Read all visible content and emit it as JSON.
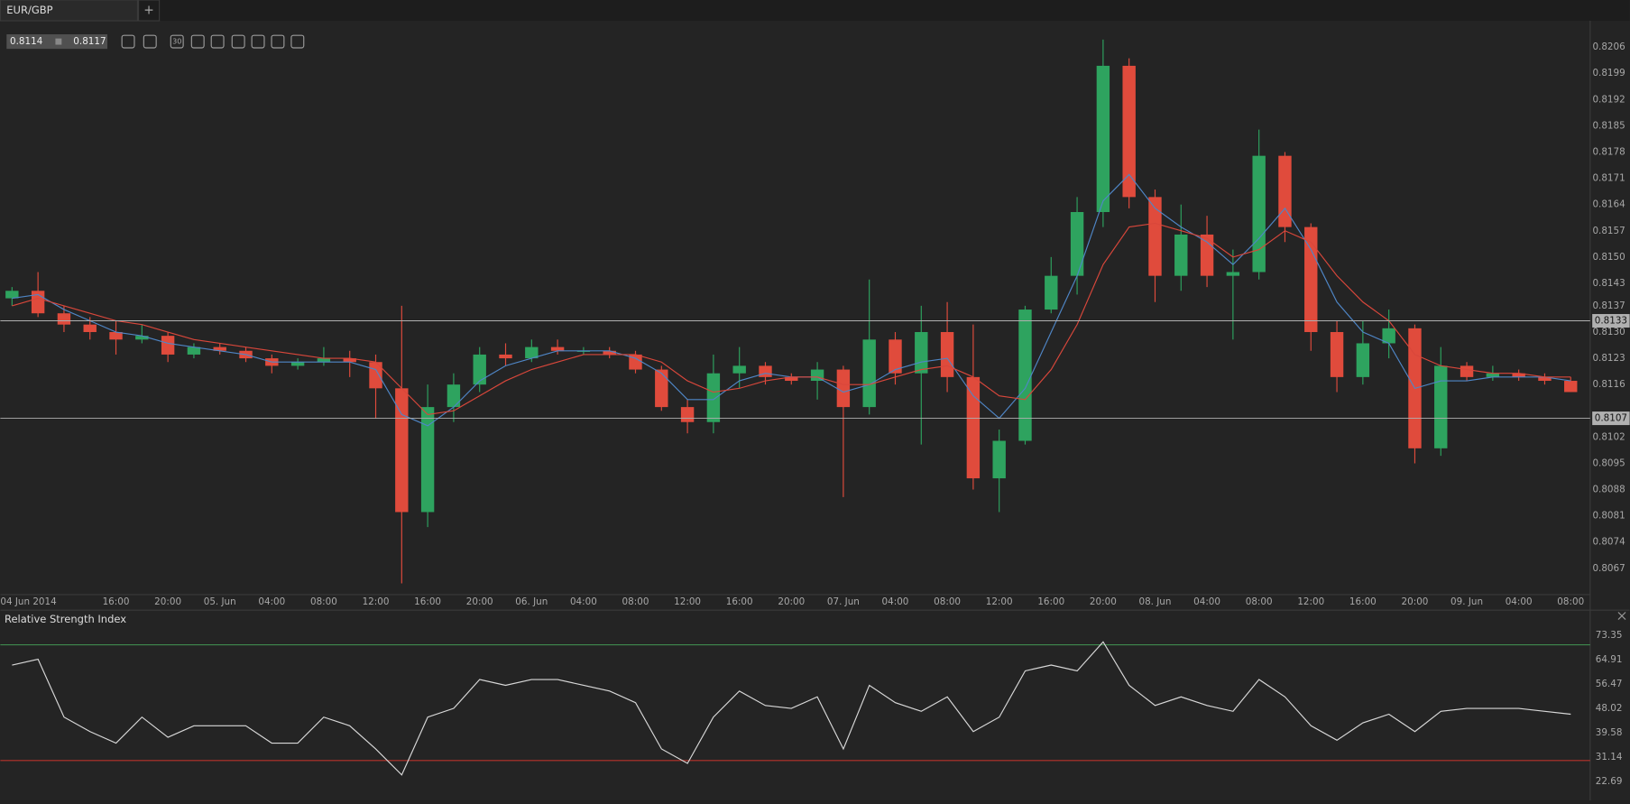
{
  "tab": {
    "title": "EUR/GBP",
    "add": "+"
  },
  "quote": {
    "bid": "0.8114",
    "ask": "0.8117"
  },
  "toolbar": {
    "timeframe": "30"
  },
  "chart_data": [
    {
      "type": "candlestick",
      "x_start_label": "04 Jun 2014",
      "x": [
        8,
        10,
        12,
        14,
        16,
        18,
        20,
        22,
        24,
        26,
        28,
        30,
        32,
        34,
        36,
        38,
        40,
        42,
        44,
        46,
        48,
        50,
        52,
        54,
        56,
        58,
        60,
        62,
        64,
        66,
        68,
        70,
        72,
        74,
        76,
        78,
        80,
        82,
        84,
        86,
        88,
        90,
        92,
        94,
        96,
        98,
        100,
        102,
        104,
        106,
        108,
        110,
        112,
        114,
        116,
        118,
        120,
        122,
        124,
        126,
        128
      ],
      "open": [
        0.8139,
        0.8141,
        0.8135,
        0.8132,
        0.813,
        0.8128,
        0.8129,
        0.8124,
        0.8126,
        0.8125,
        0.8123,
        0.8121,
        0.8122,
        0.8123,
        0.8122,
        0.8115,
        0.8082,
        0.811,
        0.8116,
        0.8124,
        0.8123,
        0.8126,
        0.8125,
        0.8125,
        0.8124,
        0.812,
        0.811,
        0.8106,
        0.8119,
        0.8121,
        0.8118,
        0.8117,
        0.812,
        0.811,
        0.8128,
        0.8119,
        0.813,
        0.8118,
        0.8091,
        0.8101,
        0.8136,
        0.8145,
        0.8162,
        0.8201,
        0.8166,
        0.8145,
        0.8156,
        0.8145,
        0.8146,
        0.8177,
        0.8158,
        0.813,
        0.8118,
        0.8127,
        0.8131,
        0.8099,
        0.8121,
        0.8118,
        0.8119,
        0.8118,
        0.8117
      ],
      "high": [
        0.8142,
        0.8146,
        0.8137,
        0.8134,
        0.8133,
        0.8132,
        0.813,
        0.8127,
        0.8127,
        0.8126,
        0.8124,
        0.8123,
        0.8126,
        0.8125,
        0.8124,
        0.8137,
        0.8116,
        0.8119,
        0.8126,
        0.8127,
        0.8128,
        0.8128,
        0.8126,
        0.8126,
        0.8125,
        0.8121,
        0.8112,
        0.8124,
        0.8126,
        0.8122,
        0.8119,
        0.8122,
        0.8121,
        0.8144,
        0.813,
        0.8137,
        0.8138,
        0.8132,
        0.8104,
        0.8137,
        0.815,
        0.8166,
        0.8208,
        0.8203,
        0.8168,
        0.8164,
        0.8161,
        0.8152,
        0.8184,
        0.8178,
        0.8159,
        0.8133,
        0.8133,
        0.8136,
        0.8132,
        0.8126,
        0.8122,
        0.8121,
        0.812,
        0.8119,
        0.8118
      ],
      "low": [
        0.8137,
        0.8134,
        0.813,
        0.8128,
        0.8124,
        0.8127,
        0.8122,
        0.8123,
        0.8124,
        0.8122,
        0.8119,
        0.812,
        0.8121,
        0.8118,
        0.8107,
        0.8063,
        0.8078,
        0.8106,
        0.8114,
        0.8121,
        0.8122,
        0.8124,
        0.8124,
        0.8123,
        0.8119,
        0.8109,
        0.8103,
        0.8103,
        0.8115,
        0.8116,
        0.8116,
        0.8112,
        0.8086,
        0.8108,
        0.8116,
        0.81,
        0.8114,
        0.8088,
        0.8082,
        0.81,
        0.8135,
        0.814,
        0.8158,
        0.8163,
        0.8138,
        0.8141,
        0.8142,
        0.8128,
        0.8144,
        0.8154,
        0.8125,
        0.8114,
        0.8116,
        0.8123,
        0.8095,
        0.8097,
        0.8117,
        0.8117,
        0.8117,
        0.8116,
        0.8114
      ],
      "close": [
        0.8141,
        0.8135,
        0.8132,
        0.813,
        0.8128,
        0.8129,
        0.8124,
        0.8126,
        0.8125,
        0.8123,
        0.8121,
        0.8122,
        0.8123,
        0.8122,
        0.8115,
        0.8082,
        0.811,
        0.8116,
        0.8124,
        0.8123,
        0.8126,
        0.8125,
        0.8125,
        0.8124,
        0.812,
        0.811,
        0.8106,
        0.8119,
        0.8121,
        0.8118,
        0.8117,
        0.812,
        0.811,
        0.8128,
        0.8119,
        0.813,
        0.8118,
        0.8091,
        0.8101,
        0.8136,
        0.8145,
        0.8162,
        0.8201,
        0.8166,
        0.8145,
        0.8156,
        0.8145,
        0.8146,
        0.8177,
        0.8158,
        0.813,
        0.8118,
        0.8127,
        0.8131,
        0.8099,
        0.8121,
        0.8118,
        0.8119,
        0.8118,
        0.8117,
        0.8114
      ],
      "up_color": "#2ea35f",
      "down_color": "#e04b3c",
      "lines": [
        {
          "color": "#4f86c6",
          "values": [
            0.8139,
            0.814,
            0.8136,
            0.8133,
            0.813,
            0.8129,
            0.8127,
            0.8126,
            0.8125,
            0.8124,
            0.8122,
            0.8122,
            0.8122,
            0.8122,
            0.812,
            0.8108,
            0.8105,
            0.811,
            0.8117,
            0.8121,
            0.8123,
            0.8125,
            0.8125,
            0.8125,
            0.8123,
            0.8119,
            0.8112,
            0.8112,
            0.8117,
            0.8119,
            0.8118,
            0.8118,
            0.8114,
            0.8116,
            0.812,
            0.8122,
            0.8123,
            0.8113,
            0.8107,
            0.8115,
            0.813,
            0.8145,
            0.8165,
            0.8172,
            0.8163,
            0.8158,
            0.8154,
            0.8148,
            0.8155,
            0.8163,
            0.8152,
            0.8138,
            0.813,
            0.8127,
            0.8115,
            0.8117,
            0.8117,
            0.8118,
            0.8118,
            0.8118,
            0.8117
          ]
        },
        {
          "color": "#d9473b",
          "values": [
            0.8137,
            0.8139,
            0.8137,
            0.8135,
            0.8133,
            0.8132,
            0.813,
            0.8128,
            0.8127,
            0.8126,
            0.8125,
            0.8124,
            0.8123,
            0.8123,
            0.8122,
            0.8115,
            0.8108,
            0.8109,
            0.8113,
            0.8117,
            0.812,
            0.8122,
            0.8124,
            0.8124,
            0.8124,
            0.8122,
            0.8117,
            0.8114,
            0.8115,
            0.8117,
            0.8118,
            0.8118,
            0.8116,
            0.8116,
            0.8118,
            0.812,
            0.8121,
            0.8118,
            0.8113,
            0.8112,
            0.812,
            0.8132,
            0.8148,
            0.8158,
            0.8159,
            0.8157,
            0.8155,
            0.815,
            0.8152,
            0.8157,
            0.8154,
            0.8145,
            0.8138,
            0.8133,
            0.8124,
            0.8121,
            0.812,
            0.8119,
            0.8119,
            0.8118,
            0.8118
          ]
        }
      ],
      "xlim": [
        7.1,
        129.5
      ],
      "xticks": [
        {
          "value": 16,
          "label": "16:00"
        },
        {
          "value": 20,
          "label": "20:00"
        },
        {
          "value": 24,
          "label": "05. Jun"
        },
        {
          "value": 28,
          "label": "04:00"
        },
        {
          "value": 32,
          "label": "08:00"
        },
        {
          "value": 36,
          "label": "12:00"
        },
        {
          "value": 40,
          "label": "16:00"
        },
        {
          "value": 44,
          "label": "20:00"
        },
        {
          "value": 48,
          "label": "06. Jun"
        },
        {
          "value": 52,
          "label": "04:00"
        },
        {
          "value": 56,
          "label": "08:00"
        },
        {
          "value": 60,
          "label": "12:00"
        },
        {
          "value": 64,
          "label": "16:00"
        },
        {
          "value": 68,
          "label": "20:00"
        },
        {
          "value": 72,
          "label": "07. Jun"
        },
        {
          "value": 76,
          "label": "04:00"
        },
        {
          "value": 80,
          "label": "08:00"
        },
        {
          "value": 84,
          "label": "12:00"
        },
        {
          "value": 88,
          "label": "16:00"
        },
        {
          "value": 92,
          "label": "20:00"
        },
        {
          "value": 96,
          "label": "08. Jun"
        },
        {
          "value": 100,
          "label": "04:00"
        },
        {
          "value": 104,
          "label": "08:00"
        },
        {
          "value": 108,
          "label": "12:00"
        },
        {
          "value": 112,
          "label": "16:00"
        },
        {
          "value": 116,
          "label": "20:00"
        },
        {
          "value": 120,
          "label": "09. Jun"
        },
        {
          "value": 124,
          "label": "04:00"
        },
        {
          "value": 128,
          "label": "08:00"
        }
      ],
      "ylim": [
        0.806,
        0.8213
      ],
      "yticks": [
        {
          "value": 0.8206,
          "label": "0.8206"
        },
        {
          "value": 0.8199,
          "label": "0.8199"
        },
        {
          "value": 0.8192,
          "label": "0.8192"
        },
        {
          "value": 0.8185,
          "label": "0.8185"
        },
        {
          "value": 0.8178,
          "label": "0.8178"
        },
        {
          "value": 0.8171,
          "label": "0.8171"
        },
        {
          "value": 0.8164,
          "label": "0.8164"
        },
        {
          "value": 0.8157,
          "label": "0.8157"
        },
        {
          "value": 0.815,
          "label": "0.8150"
        },
        {
          "value": 0.8143,
          "label": "0.8143"
        },
        {
          "value": 0.8137,
          "label": "0.8137"
        },
        {
          "value": 0.813,
          "label": "0.8130"
        },
        {
          "value": 0.8123,
          "label": "0.8123"
        },
        {
          "value": 0.8116,
          "label": "0.8116"
        },
        {
          "value": 0.8102,
          "label": "0.8102"
        },
        {
          "value": 0.8095,
          "label": "0.8095"
        },
        {
          "value": 0.8088,
          "label": "0.8088"
        },
        {
          "value": 0.8081,
          "label": "0.8081"
        },
        {
          "value": 0.8074,
          "label": "0.8074"
        },
        {
          "value": 0.8067,
          "label": "0.8067"
        }
      ],
      "levels": [
        {
          "value": 0.8133,
          "label": "0.8133"
        },
        {
          "value": 0.8107,
          "label": "0.8107"
        }
      ],
      "level_color": "#b0b0b0"
    },
    {
      "type": "line",
      "title": "Relative Strength Index",
      "color": "#d8d8d8",
      "x": [
        8,
        10,
        12,
        14,
        16,
        18,
        20,
        22,
        24,
        26,
        28,
        30,
        32,
        34,
        36,
        38,
        40,
        42,
        44,
        46,
        48,
        50,
        52,
        54,
        56,
        58,
        60,
        62,
        64,
        66,
        68,
        70,
        72,
        74,
        76,
        78,
        80,
        82,
        84,
        86,
        88,
        90,
        92,
        94,
        96,
        98,
        100,
        102,
        104,
        106,
        108,
        110,
        112,
        114,
        116,
        118,
        120,
        122,
        124,
        126,
        128
      ],
      "values": [
        63,
        65,
        45,
        40,
        36,
        45,
        38,
        42,
        42,
        42,
        36,
        36,
        45,
        42,
        34,
        25,
        45,
        48,
        58,
        56,
        58,
        58,
        56,
        54,
        50,
        34,
        29,
        45,
        54,
        49,
        48,
        52,
        34,
        56,
        50,
        47,
        52,
        40,
        45,
        61,
        63,
        61,
        71,
        56,
        49,
        52,
        49,
        47,
        58,
        52,
        42,
        37,
        43,
        46,
        40,
        47,
        48,
        48,
        48,
        47,
        46
      ],
      "xlim": [
        7.1,
        129.5
      ],
      "ylim": [
        16.2,
        77.3
      ],
      "yticks": [
        73.35,
        64.91,
        56.47,
        48.02,
        39.58,
        31.14,
        22.69
      ],
      "levels": [
        {
          "value": 70,
          "color": "#3f8a4e"
        },
        {
          "value": 30,
          "color": "#b8332b"
        }
      ]
    }
  ]
}
